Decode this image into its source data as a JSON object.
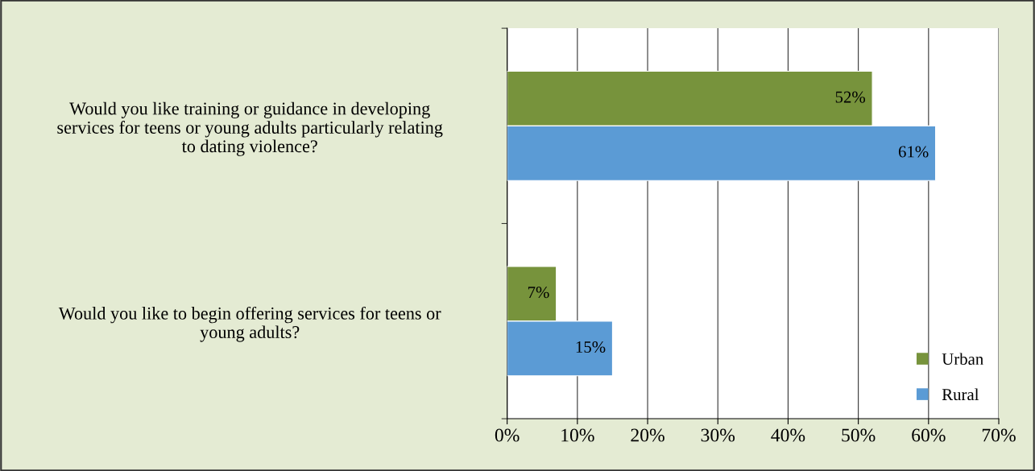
{
  "chart_data": {
    "type": "bar",
    "orientation": "horizontal",
    "categories": [
      "Would you like training or guidance in developing\nservices for teens or young adults particularly relating\nto dating violence?",
      "Would you like to begin offering services for teens or\nyoung adults?"
    ],
    "series": [
      {
        "name": "Urban",
        "color": "#77933c",
        "values": [
          52,
          7
        ],
        "value_labels": [
          "52%",
          "7%"
        ]
      },
      {
        "name": "Rural",
        "color": "#5b9bd5",
        "values": [
          61,
          15
        ],
        "value_labels": [
          "61%",
          "15%"
        ]
      }
    ],
    "xlim": [
      0,
      70
    ],
    "xticks": [
      {
        "value": 0,
        "label": "0%"
      },
      {
        "value": 10,
        "label": "10%"
      },
      {
        "value": 20,
        "label": "20%"
      },
      {
        "value": 30,
        "label": "30%"
      },
      {
        "value": 40,
        "label": "40%"
      },
      {
        "value": 50,
        "label": "50%"
      },
      {
        "value": 60,
        "label": "60%"
      },
      {
        "value": 70,
        "label": "70%"
      }
    ],
    "grid": "x",
    "legend": "bottom right"
  }
}
